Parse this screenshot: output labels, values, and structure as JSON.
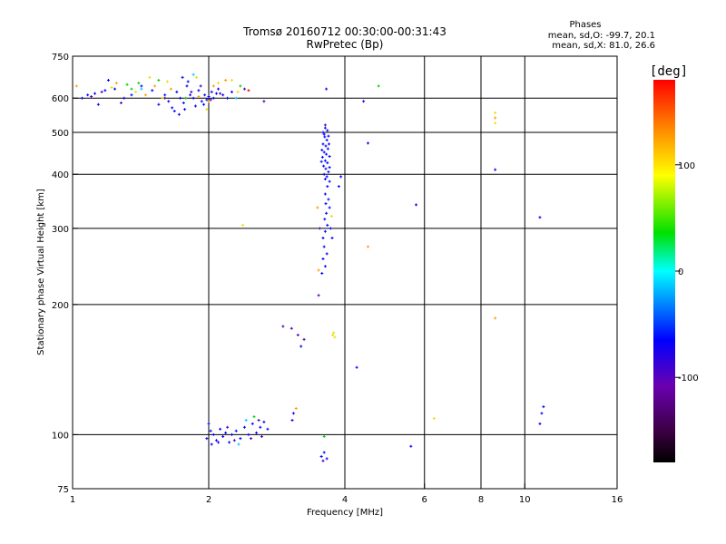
{
  "chart_data": {
    "type": "scatter",
    "title_line1": "Tromsø 20160712 00:30:00-00:31:43",
    "title_line2": "RwPretec (Bp)",
    "xlabel": "Frequency [MHz]",
    "ylabel": "Stationary phase Virtual Height [km]",
    "x_scale": "log",
    "y_scale": "log",
    "xlim": [
      1,
      16
    ],
    "ylim": [
      75,
      750
    ],
    "x_ticks": [
      1,
      2,
      4,
      6,
      8,
      10,
      16
    ],
    "x_tick_labels": [
      "1",
      "2",
      "4",
      "6",
      "8",
      "10",
      "16"
    ],
    "y_ticks": [
      75,
      100,
      200,
      300,
      400,
      500,
      600,
      750
    ],
    "y_tick_labels": [
      "75",
      "100",
      "200",
      "300",
      "400",
      "500",
      "600",
      "750"
    ],
    "grid": true,
    "info_title": "Phases",
    "info_line1": "mean, sd,O: -99.7, 20.1",
    "info_line2": "mean, sd,X:  81.0, 26.6",
    "colorbar": {
      "label": "[deg]",
      "range": [
        -180,
        180
      ],
      "ticks": [
        -100,
        0,
        100
      ],
      "tick_labels": [
        "-100",
        "0",
        "100"
      ],
      "colormap": "rainbow (black → purple → blue → cyan → green → yellow → red)"
    },
    "color_key": {
      "blue": -110,
      "purple": -145,
      "orange": 100,
      "yellow": 95,
      "green": 10,
      "red": 160
    },
    "series": [
      {
        "points": [
          [
            1.05,
            600,
            "blue"
          ],
          [
            1.08,
            610,
            "blue"
          ],
          [
            1.12,
            615,
            "blue"
          ],
          [
            1.14,
            580,
            "blue"
          ],
          [
            1.18,
            625,
            "blue"
          ],
          [
            1.2,
            660,
            "blue"
          ],
          [
            1.24,
            630,
            "blue"
          ],
          [
            1.3,
            600,
            "blue"
          ],
          [
            1.35,
            610,
            "blue"
          ],
          [
            1.42,
            640,
            "blue"
          ],
          [
            1.5,
            625,
            "blue"
          ],
          [
            1.55,
            580,
            "blue"
          ],
          [
            1.6,
            610,
            "blue"
          ],
          [
            1.63,
            590,
            "blue"
          ],
          [
            1.66,
            570,
            "blue"
          ],
          [
            1.7,
            620,
            "blue"
          ],
          [
            1.73,
            600,
            "blue"
          ],
          [
            1.76,
            585,
            "blue"
          ],
          [
            1.79,
            640,
            "blue"
          ],
          [
            1.82,
            610,
            "blue"
          ],
          [
            1.85,
            600,
            "blue"
          ],
          [
            1.87,
            575,
            "blue"
          ],
          [
            1.9,
            625,
            "blue"
          ],
          [
            1.93,
            590,
            "blue"
          ],
          [
            1.96,
            610,
            "blue"
          ],
          [
            2.0,
            605,
            "blue"
          ],
          [
            2.03,
            620,
            "blue"
          ],
          [
            2.05,
            600,
            "blue"
          ],
          [
            2.08,
            615,
            "blue"
          ],
          [
            2.1,
            630,
            "blue"
          ],
          [
            2.15,
            610,
            "blue"
          ],
          [
            2.2,
            600,
            "blue"
          ],
          [
            2.25,
            620,
            "blue"
          ],
          [
            1.75,
            670,
            "blue"
          ],
          [
            1.8,
            655,
            "blue"
          ],
          [
            1.68,
            560,
            "blue"
          ],
          [
            1.72,
            550,
            "blue"
          ],
          [
            1.77,
            565,
            "blue"
          ],
          [
            1.95,
            580,
            "blue"
          ],
          [
            1.98,
            595,
            "blue"
          ],
          [
            1.1,
            605,
            "purple"
          ],
          [
            1.16,
            620,
            "purple"
          ],
          [
            1.28,
            585,
            "purple"
          ],
          [
            1.6,
            600,
            "purple"
          ],
          [
            1.83,
            620,
            "purple"
          ],
          [
            2.02,
            595,
            "purple"
          ],
          [
            2.12,
            615,
            "purple"
          ],
          [
            1.92,
            640,
            "purple"
          ],
          [
            2.4,
            630,
            "purple"
          ],
          [
            2.65,
            590,
            "purple"
          ],
          [
            1.02,
            640,
            "orange"
          ],
          [
            1.25,
            650,
            "orange"
          ],
          [
            1.45,
            610,
            "orange"
          ],
          [
            1.52,
            640,
            "orange"
          ],
          [
            1.65,
            630,
            "orange"
          ],
          [
            1.9,
            605,
            "orange"
          ],
          [
            2.0,
            590,
            "orange"
          ],
          [
            2.18,
            660,
            "orange"
          ],
          [
            2.05,
            640,
            "orange"
          ],
          [
            1.22,
            635,
            "yellow"
          ],
          [
            1.38,
            620,
            "yellow"
          ],
          [
            1.48,
            670,
            "yellow"
          ],
          [
            1.58,
            600,
            "yellow"
          ],
          [
            1.62,
            655,
            "yellow"
          ],
          [
            1.88,
            670,
            "yellow"
          ],
          [
            2.1,
            650,
            "yellow"
          ],
          [
            2.25,
            660,
            "yellow"
          ],
          [
            2.32,
            620,
            "yellow"
          ],
          [
            1.98,
            565,
            "yellow"
          ],
          [
            1.32,
            645,
            "green"
          ],
          [
            1.35,
            630,
            "green"
          ],
          [
            1.4,
            650,
            "green"
          ],
          [
            1.55,
            660,
            "green"
          ],
          [
            1.78,
            600,
            "green"
          ],
          [
            2.35,
            640,
            "green"
          ],
          [
            4.75,
            640,
            "green"
          ],
          [
            4.4,
            590,
            "blue"
          ],
          [
            2.45,
            625,
            "red"
          ],
          [
            2.3,
            600,
            "cyan"
          ],
          [
            1.85,
            680,
            "cyan"
          ],
          [
            1.42,
            630,
            "cyan"
          ],
          [
            3.62,
            512,
            "blue"
          ],
          [
            3.66,
            505,
            "blue"
          ],
          [
            3.6,
            495,
            "blue"
          ],
          [
            3.65,
            480,
            "blue"
          ],
          [
            3.58,
            470,
            "blue"
          ],
          [
            3.63,
            465,
            "blue"
          ],
          [
            3.67,
            458,
            "blue"
          ],
          [
            3.6,
            450,
            "blue"
          ],
          [
            3.64,
            445,
            "blue"
          ],
          [
            3.57,
            438,
            "blue"
          ],
          [
            3.62,
            430,
            "blue"
          ],
          [
            3.66,
            425,
            "blue"
          ],
          [
            3.59,
            418,
            "blue"
          ],
          [
            3.63,
            412,
            "blue"
          ],
          [
            3.68,
            405,
            "blue"
          ],
          [
            3.6,
            400,
            "blue"
          ],
          [
            3.65,
            395,
            "blue"
          ],
          [
            3.61,
            488,
            "blue"
          ],
          [
            3.69,
            470,
            "blue"
          ],
          [
            3.56,
            455,
            "blue"
          ],
          [
            3.7,
            440,
            "blue"
          ],
          [
            3.55,
            428,
            "blue"
          ],
          [
            3.7,
            415,
            "blue"
          ],
          [
            3.58,
            500,
            "blue"
          ],
          [
            3.68,
            490,
            "blue"
          ],
          [
            3.62,
            390,
            "blue"
          ],
          [
            3.7,
            385,
            "blue"
          ],
          [
            3.66,
            375,
            "blue"
          ],
          [
            3.62,
            360,
            "blue"
          ],
          [
            3.68,
            350,
            "blue"
          ],
          [
            3.63,
            342,
            "blue"
          ],
          [
            3.7,
            335,
            "blue"
          ],
          [
            3.64,
            325,
            "blue"
          ],
          [
            3.61,
            315,
            "blue"
          ],
          [
            3.66,
            305,
            "blue"
          ],
          [
            3.62,
            295,
            "blue"
          ],
          [
            3.72,
            300,
            "blue"
          ],
          [
            3.58,
            285,
            "blue"
          ],
          [
            3.75,
            285,
            "blue"
          ],
          [
            3.6,
            272,
            "blue"
          ],
          [
            3.65,
            262,
            "blue"
          ],
          [
            3.58,
            255,
            "blue"
          ],
          [
            3.62,
            245,
            "blue"
          ],
          [
            3.56,
            236,
            "blue"
          ],
          [
            3.88,
            375,
            "blue"
          ],
          [
            3.92,
            395,
            "blue"
          ],
          [
            3.64,
            630,
            "blue"
          ],
          [
            3.5,
            210,
            "purple"
          ],
          [
            3.52,
            300,
            "purple"
          ],
          [
            3.48,
            335,
            "orange"
          ],
          [
            3.5,
            240,
            "orange"
          ],
          [
            3.62,
            520,
            "purple"
          ],
          [
            3.74,
            320,
            "yellow"
          ],
          [
            3.78,
            172,
            "yellow"
          ],
          [
            3.8,
            168,
            "yellow"
          ],
          [
            3.76,
            170,
            "yellow"
          ],
          [
            2.92,
            178,
            "purple"
          ],
          [
            3.05,
            176,
            "purple"
          ],
          [
            3.15,
            170,
            "purple"
          ],
          [
            3.25,
            166,
            "purple"
          ],
          [
            3.2,
            160,
            "blue"
          ],
          [
            3.08,
            112,
            "blue"
          ],
          [
            3.12,
            115,
            "orange"
          ],
          [
            3.06,
            108,
            "blue"
          ],
          [
            2.38,
            305,
            "yellow"
          ],
          [
            1.98,
            98,
            "blue"
          ],
          [
            2.02,
            102,
            "blue"
          ],
          [
            2.05,
            100,
            "blue"
          ],
          [
            2.08,
            97,
            "blue"
          ],
          [
            2.12,
            103,
            "blue"
          ],
          [
            2.15,
            99,
            "blue"
          ],
          [
            2.18,
            101,
            "blue"
          ],
          [
            2.22,
            96,
            "blue"
          ],
          [
            2.25,
            100,
            "blue"
          ],
          [
            2.3,
            102,
            "blue"
          ],
          [
            2.35,
            98,
            "blue"
          ],
          [
            2.4,
            104,
            "blue"
          ],
          [
            2.45,
            100,
            "blue"
          ],
          [
            2.5,
            106,
            "blue"
          ],
          [
            2.55,
            101,
            "blue"
          ],
          [
            2.6,
            104,
            "blue"
          ],
          [
            2.65,
            107,
            "blue"
          ],
          [
            2.7,
            103,
            "blue"
          ],
          [
            2.0,
            106,
            "blue"
          ],
          [
            2.1,
            96,
            "blue"
          ],
          [
            2.2,
            104,
            "purple"
          ],
          [
            2.28,
            97,
            "purple"
          ],
          [
            2.48,
            98,
            "purple"
          ],
          [
            2.58,
            108,
            "purple"
          ],
          [
            2.62,
            99,
            "purple"
          ],
          [
            2.03,
            95,
            "blue"
          ],
          [
            2.33,
            95,
            "cyan"
          ],
          [
            2.52,
            110,
            "green"
          ],
          [
            2.42,
            108,
            "cyan"
          ],
          [
            3.55,
            89,
            "blue"
          ],
          [
            3.6,
            91,
            "blue"
          ],
          [
            3.65,
            88,
            "blue"
          ],
          [
            3.58,
            87,
            "purple"
          ],
          [
            3.6,
            99,
            "green"
          ],
          [
            4.5,
            472,
            "blue"
          ],
          [
            4.25,
            143,
            "blue"
          ],
          [
            5.6,
            94,
            "blue"
          ],
          [
            5.75,
            340,
            "blue"
          ],
          [
            4.5,
            272,
            "orange"
          ],
          [
            6.3,
            109,
            "yellow"
          ],
          [
            8.6,
            555,
            "yellow"
          ],
          [
            8.6,
            540,
            "orange"
          ],
          [
            8.6,
            525,
            "yellow"
          ],
          [
            8.6,
            410,
            "blue"
          ],
          [
            8.6,
            186,
            "orange"
          ],
          [
            10.8,
            318,
            "blue"
          ],
          [
            11.0,
            116,
            "blue"
          ],
          [
            10.9,
            112,
            "blue"
          ],
          [
            10.8,
            106,
            "blue"
          ]
        ]
      }
    ]
  }
}
